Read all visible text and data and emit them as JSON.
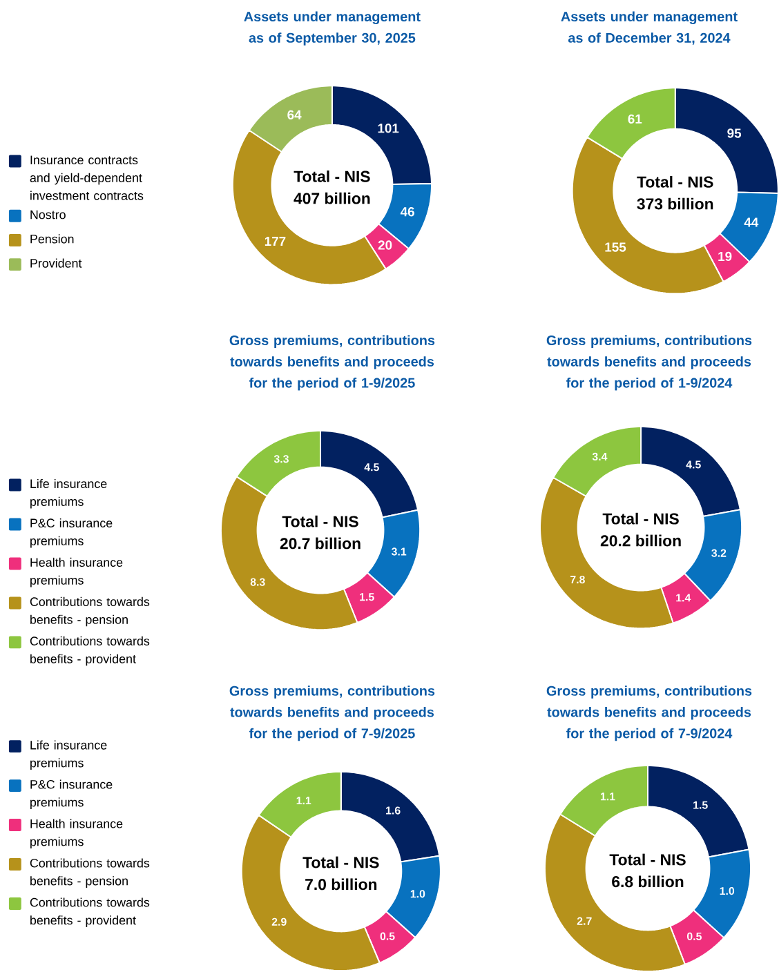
{
  "chart_data": [
    {
      "type": "donut",
      "title": "Assets under management",
      "subtitle": "as of September 30, 2025",
      "categories": [
        "Insurance contracts and yield-dependent investment contracts",
        "Nostro",
        null,
        "Pension",
        "Provident"
      ],
      "values": [
        101,
        46,
        20,
        177,
        64
      ],
      "value_labels": [
        "101",
        "46",
        "20",
        "177",
        "64"
      ],
      "colors": [
        "#022160",
        "#0872bf",
        "#ef2f7c",
        "#b6921b",
        "#9bbb59"
      ],
      "legend": "left",
      "annotations": [
        "Total - NIS",
        "407 billion"
      ]
    },
    {
      "type": "donut",
      "title": "Assets under management",
      "subtitle": "as of December 31, 2024",
      "categories": [
        null,
        null,
        null,
        null,
        null
      ],
      "values": [
        95,
        44,
        19,
        155,
        61
      ],
      "value_labels": [
        "95",
        "44",
        "19",
        "155",
        "61"
      ],
      "colors": [
        "#022160",
        "#0872bf",
        "#ef2f7c",
        "#b6921b",
        "#8dc63f"
      ],
      "annotations": [
        "Total - NIS",
        "373 billion"
      ]
    },
    {
      "type": "donut",
      "title": "Gross premiums, contributions towards benefits and proceeds for the period of 1-9/2025",
      "categories": [
        "Life insurance premiums",
        "P&C insurance premiums",
        "Health insurance premiums",
        "Contributions towards benefits - pension",
        "Contributions towards benefits - provident"
      ],
      "values": [
        4.5,
        3.1,
        1.5,
        8.3,
        3.3
      ],
      "value_labels": [
        "4.5",
        "3.1",
        "1.5",
        "8.3",
        "3.3"
      ],
      "colors": [
        "#022160",
        "#0872bf",
        "#ef2f7c",
        "#b6921b",
        "#8dc63f"
      ],
      "legend": "left",
      "annotations": [
        "Total - NIS",
        "20.7 billion"
      ]
    },
    {
      "type": "donut",
      "title": "Gross premiums, contributions towards benefits and proceeds for the period of 1-9/2024",
      "categories": [
        null,
        null,
        null,
        null,
        null
      ],
      "values": [
        4.5,
        3.2,
        1.4,
        7.8,
        3.4
      ],
      "value_labels": [
        "4.5",
        "3.2",
        "1.4",
        "7.8",
        "3.4"
      ],
      "colors": [
        "#022160",
        "#0872bf",
        "#ef2f7c",
        "#b6921b",
        "#8dc63f"
      ],
      "annotations": [
        "Total - NIS",
        "20.2 billion"
      ]
    },
    {
      "type": "donut",
      "title": "Gross premiums, contributions towards benefits and proceeds for the period of 7-9/2025",
      "categories": [
        "Life insurance premiums",
        "P&C insurance premiums",
        "Health insurance premiums",
        "Contributions towards benefits - pension",
        "Contributions towards benefits - provident"
      ],
      "values": [
        1.6,
        1.0,
        0.5,
        2.9,
        1.1
      ],
      "value_labels": [
        "1.6",
        "1.0",
        "0.5",
        "2.9",
        "1.1"
      ],
      "colors": [
        "#022160",
        "#0872bf",
        "#ef2f7c",
        "#b6921b",
        "#8dc63f"
      ],
      "legend": "left",
      "annotations": [
        "Total - NIS",
        "7.0 billion"
      ]
    },
    {
      "type": "donut",
      "title": "Gross premiums, contributions towards benefits and proceeds for the period of 7-9/2024",
      "categories": [
        null,
        null,
        null,
        null,
        null
      ],
      "values": [
        1.5,
        1.0,
        0.5,
        2.7,
        1.1
      ],
      "value_labels": [
        "1.5",
        "1.0",
        "0.5",
        "2.7",
        "1.1"
      ],
      "colors": [
        "#022160",
        "#0872bf",
        "#ef2f7c",
        "#b6921b",
        "#8dc63f"
      ],
      "annotations": [
        "Total - NIS",
        "6.8 billion"
      ]
    }
  ]
}
